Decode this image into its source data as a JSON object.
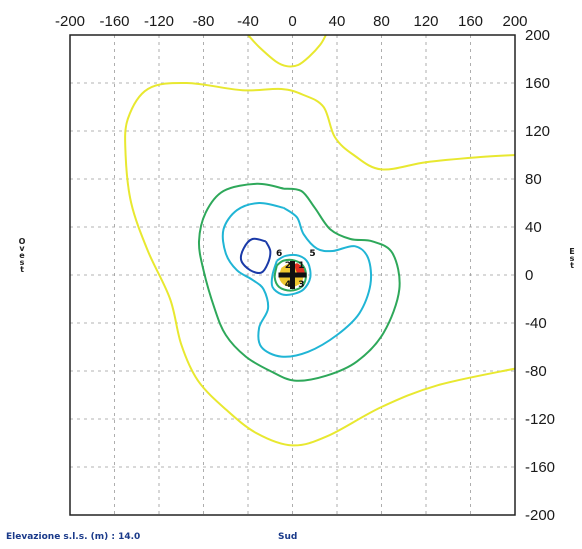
{
  "chart_data": {
    "type": "contour",
    "x_ticks": [
      -200,
      -160,
      -120,
      -80,
      -40,
      0,
      40,
      80,
      120,
      160,
      200
    ],
    "y_ticks": [
      200,
      160,
      120,
      80,
      40,
      0,
      -40,
      -80,
      -120,
      -160,
      -200
    ],
    "xlim": [
      -200,
      200
    ],
    "ylim": [
      -200,
      200
    ],
    "grid": true,
    "grid_style": "dashed",
    "contours": [
      {
        "color": "#e8e830",
        "points": [
          [
            -40,
            200
          ],
          [
            -30,
            190
          ],
          [
            -15,
            178
          ],
          [
            -5,
            174
          ],
          [
            5,
            175
          ],
          [
            15,
            182
          ],
          [
            25,
            192
          ],
          [
            30,
            200
          ]
        ]
      },
      {
        "color": "#e8e830",
        "points": [
          [
            200,
            100
          ],
          [
            165,
            98
          ],
          [
            120,
            94
          ],
          [
            80,
            88
          ],
          [
            55,
            100
          ],
          [
            38,
            115
          ],
          [
            28,
            140
          ],
          [
            10,
            150
          ],
          [
            -10,
            155
          ],
          [
            -45,
            154
          ],
          [
            -95,
            160
          ],
          [
            -130,
            155
          ],
          [
            -148,
            130
          ],
          [
            -150,
            100
          ],
          [
            -145,
            60
          ],
          [
            -130,
            20
          ],
          [
            -110,
            -20
          ],
          [
            -100,
            -58
          ],
          [
            -85,
            -88
          ],
          [
            -60,
            -112
          ],
          [
            -32,
            -132
          ],
          [
            0,
            -142
          ],
          [
            32,
            -134
          ],
          [
            80,
            -110
          ],
          [
            130,
            -92
          ],
          [
            200,
            -78
          ]
        ]
      },
      {
        "color": "#2ea85a",
        "points": [
          [
            -8,
            72
          ],
          [
            -32,
            76
          ],
          [
            -62,
            70
          ],
          [
            -78,
            52
          ],
          [
            -84,
            28
          ],
          [
            -80,
            4
          ],
          [
            -70,
            -28
          ],
          [
            -60,
            -50
          ],
          [
            -42,
            -68
          ],
          [
            -20,
            -80
          ],
          [
            2,
            -88
          ],
          [
            30,
            -84
          ],
          [
            58,
            -72
          ],
          [
            82,
            -48
          ],
          [
            96,
            -12
          ],
          [
            90,
            18
          ],
          [
            72,
            28
          ],
          [
            52,
            30
          ],
          [
            34,
            38
          ],
          [
            20,
            56
          ],
          [
            8,
            70
          ],
          [
            -8,
            72
          ]
        ]
      },
      {
        "color": "#20b5d5",
        "points": [
          [
            -8,
            56
          ],
          [
            -30,
            60
          ],
          [
            -50,
            54
          ],
          [
            -62,
            38
          ],
          [
            -60,
            18
          ],
          [
            -50,
            4
          ],
          [
            -36,
            -4
          ],
          [
            -26,
            -12
          ],
          [
            -22,
            -28
          ],
          [
            -30,
            -44
          ],
          [
            -28,
            -60
          ],
          [
            -10,
            -68
          ],
          [
            14,
            -64
          ],
          [
            40,
            -50
          ],
          [
            60,
            -32
          ],
          [
            70,
            -8
          ],
          [
            68,
            14
          ],
          [
            56,
            24
          ],
          [
            36,
            20
          ],
          [
            22,
            22
          ],
          [
            10,
            34
          ],
          [
            4,
            48
          ],
          [
            -8,
            56
          ]
        ]
      },
      {
        "color": "#20b5d5",
        "points": [
          [
            -14,
            12
          ],
          [
            -18,
            0
          ],
          [
            -18,
            -10
          ],
          [
            -10,
            -16
          ],
          [
            0,
            -16
          ],
          [
            10,
            -12
          ],
          [
            16,
            -2
          ],
          [
            14,
            10
          ],
          [
            6,
            16
          ],
          [
            -6,
            16
          ],
          [
            -14,
            12
          ]
        ]
      },
      {
        "color": "#1a3aa8",
        "points": [
          [
            -24,
            28
          ],
          [
            -36,
            30
          ],
          [
            -44,
            22
          ],
          [
            -46,
            12
          ],
          [
            -38,
            4
          ],
          [
            -28,
            2
          ],
          [
            -22,
            10
          ],
          [
            -20,
            20
          ],
          [
            -24,
            28
          ]
        ]
      },
      {
        "color": "#2ea85a",
        "points": [
          [
            -14,
            8
          ],
          [
            -16,
            -2
          ],
          [
            -12,
            -10
          ],
          [
            -2,
            -13
          ],
          [
            8,
            -10
          ],
          [
            12,
            -2
          ],
          [
            10,
            7
          ],
          [
            2,
            12
          ],
          [
            -8,
            12
          ],
          [
            -14,
            8
          ]
        ]
      }
    ],
    "core_fill": {
      "color": "#f0c830",
      "points": [
        [
          -10,
          6
        ],
        [
          -12,
          -2
        ],
        [
          -8,
          -8
        ],
        [
          0,
          -10
        ],
        [
          8,
          -6
        ],
        [
          10,
          2
        ],
        [
          6,
          8
        ],
        [
          -2,
          10
        ],
        [
          -10,
          6
        ]
      ]
    },
    "red_fill": {
      "color": "#e03020",
      "points": [
        [
          4,
          10
        ],
        [
          10,
          6
        ],
        [
          12,
          0
        ],
        [
          8,
          -2
        ],
        [
          4,
          2
        ],
        [
          2,
          8
        ],
        [
          4,
          10
        ]
      ]
    },
    "marker": {
      "x": 0,
      "y": 0,
      "symbol": "cross"
    },
    "point_labels": [
      {
        "text": "5",
        "x": 18,
        "y": 16
      },
      {
        "text": "6",
        "x": -12,
        "y": 16
      },
      {
        "text": "2",
        "x": -4,
        "y": 6
      },
      {
        "text": "1",
        "x": 8,
        "y": 6
      },
      {
        "text": "4",
        "x": -4,
        "y": -10
      },
      {
        "text": "3",
        "x": 8,
        "y": -10
      }
    ]
  },
  "side_labels": {
    "left": "Ovest",
    "right": "Est"
  },
  "footer": {
    "elevation_label": "Elevazione s.l.s. (m) : 14.0",
    "south_label": "Sud"
  },
  "colors": {
    "frame": "#222222",
    "grid": "#9a9a9a"
  }
}
